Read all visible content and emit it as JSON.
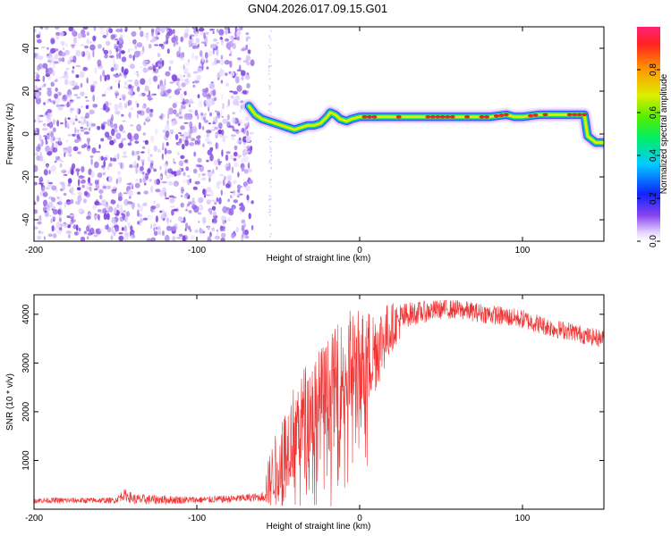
{
  "title": "GN04.2026.017.09.15.G01",
  "chart_data": [
    {
      "type": "heatmap",
      "name": "spectrogram",
      "xlabel": "Height of straight line (km)",
      "ylabel": "Frequency (Hz)",
      "xlim": [
        -200,
        150
      ],
      "ylim": [
        -50,
        50
      ],
      "xticks": [
        -200,
        -100,
        0,
        100
      ],
      "yticks": [
        -40,
        -20,
        0,
        20,
        40
      ],
      "noise_region_x": [
        -200,
        -68
      ],
      "track": {
        "x": [
          -68,
          -64,
          -60,
          -56,
          -52,
          -48,
          -44,
          -40,
          -36,
          -32,
          -28,
          -24,
          -20,
          -18,
          -15,
          -12,
          -8,
          -5,
          0,
          10,
          20,
          40,
          60,
          80,
          90,
          95,
          100,
          110,
          120,
          130,
          138,
          140,
          145,
          150
        ],
        "y": [
          13,
          9,
          7,
          6,
          5,
          4,
          3,
          2,
          3,
          4,
          4,
          5,
          8,
          10,
          9,
          7,
          6,
          7,
          8,
          8,
          8,
          8,
          8,
          8,
          9,
          8,
          8,
          9,
          9,
          9,
          9,
          -1,
          -4,
          -4
        ]
      },
      "colorbar": {
        "label": "Normalized spectral amplitude",
        "ticks": [
          "0.0",
          "0.2",
          "0.4",
          "0.6",
          "0.8"
        ],
        "range": [
          0,
          1
        ]
      }
    },
    {
      "type": "line",
      "name": "snr",
      "xlabel": "Height of straight line (km)",
      "ylabel": "SNR (10 * v/v)",
      "xlim": [
        -200,
        150
      ],
      "ylim": [
        0,
        4400
      ],
      "xticks": [
        -200,
        -100,
        0,
        100
      ],
      "yticks": [
        1000,
        2000,
        3000,
        4000
      ],
      "color": "#ee3333",
      "envelope": {
        "x": [
          -200,
          -150,
          -145,
          -142,
          -138,
          -100,
          -80,
          -60,
          -55,
          -50,
          -45,
          -40,
          -35,
          -30,
          -25,
          -20,
          -15,
          -10,
          -5,
          0,
          10,
          20,
          30,
          40,
          50,
          60,
          70,
          80,
          90,
          100,
          110,
          120,
          130,
          140,
          150
        ],
        "y": [
          180,
          180,
          300,
          260,
          200,
          190,
          210,
          250,
          600,
          1000,
          1300,
          1600,
          1900,
          2000,
          2150,
          2300,
          2500,
          2700,
          2900,
          2850,
          3300,
          3750,
          4000,
          4050,
          4100,
          4100,
          4050,
          4000,
          3950,
          3900,
          3800,
          3700,
          3650,
          3550,
          3500
        ]
      },
      "noise": {
        "x": [
          -200,
          -150,
          -145,
          -100,
          -80,
          -60,
          -55,
          -40,
          -20,
          0,
          10,
          20,
          30,
          50,
          100,
          150
        ],
        "amp": [
          60,
          60,
          120,
          70,
          80,
          90,
          600,
          1000,
          1200,
          1300,
          900,
          500,
          250,
          200,
          200,
          180
        ]
      }
    }
  ]
}
